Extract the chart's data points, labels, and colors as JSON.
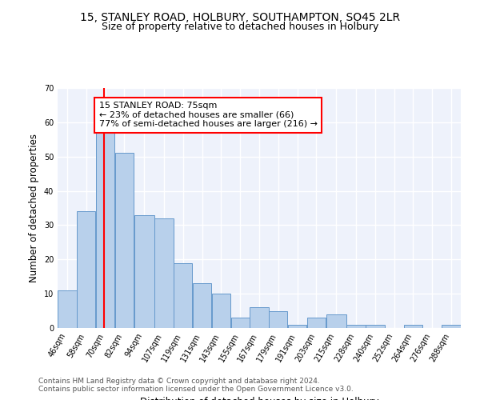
{
  "title_line1": "15, STANLEY ROAD, HOLBURY, SOUTHAMPTON, SO45 2LR",
  "title_line2": "Size of property relative to detached houses in Holbury",
  "xlabel": "Distribution of detached houses by size in Holbury",
  "ylabel": "Number of detached properties",
  "categories": [
    "46sqm",
    "58sqm",
    "70sqm",
    "82sqm",
    "94sqm",
    "107sqm",
    "119sqm",
    "131sqm",
    "143sqm",
    "155sqm",
    "167sqm",
    "179sqm",
    "191sqm",
    "203sqm",
    "215sqm",
    "228sqm",
    "240sqm",
    "252sqm",
    "264sqm",
    "276sqm",
    "288sqm"
  ],
  "bar_heights": [
    11,
    34,
    58,
    51,
    33,
    32,
    19,
    13,
    10,
    3,
    6,
    5,
    1,
    3,
    4,
    1,
    1,
    0,
    1,
    0,
    1
  ],
  "bin_starts": [
    46,
    58,
    70,
    82,
    94,
    107,
    119,
    131,
    143,
    155,
    167,
    179,
    191,
    203,
    215,
    228,
    240,
    252,
    264,
    276,
    288
  ],
  "bin_widths": [
    12,
    12,
    12,
    12,
    13,
    12,
    12,
    12,
    12,
    12,
    12,
    12,
    12,
    12,
    13,
    12,
    12,
    12,
    12,
    12,
    12
  ],
  "bar_color": "#b8d0eb",
  "bar_edge_color": "#6699cc",
  "vline_x": 75,
  "vline_color": "red",
  "annotation_text": "15 STANLEY ROAD: 75sqm\n← 23% of detached houses are smaller (66)\n77% of semi-detached houses are larger (216) →",
  "annotation_box_color": "white",
  "annotation_box_edge": "red",
  "ylim": [
    0,
    70
  ],
  "yticks": [
    0,
    10,
    20,
    30,
    40,
    50,
    60,
    70
  ],
  "bg_color": "#eef2fb",
  "grid_color": "white",
  "footer_line1": "Contains HM Land Registry data © Crown copyright and database right 2024.",
  "footer_line2": "Contains public sector information licensed under the Open Government Licence v3.0.",
  "title_fontsize": 10,
  "subtitle_fontsize": 9,
  "axis_label_fontsize": 8.5,
  "tick_fontsize": 7,
  "annotation_fontsize": 8,
  "footer_fontsize": 6.5
}
